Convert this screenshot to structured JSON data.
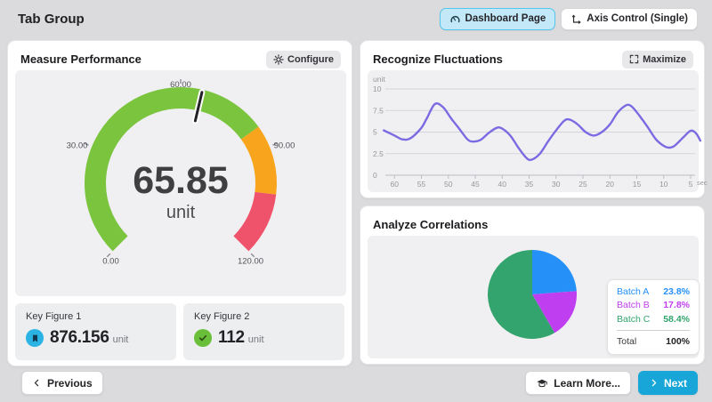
{
  "header": {
    "title": "Tab Group",
    "dashboard_button": {
      "label": "Dashboard Page"
    },
    "axis_button": {
      "label": "Axis Control (Single)"
    }
  },
  "measure_panel": {
    "title": "Measure Performance",
    "configure_label": "Configure"
  },
  "fluctuations_panel": {
    "title": "Recognize Fluctuations",
    "maximize_label": "Maximize"
  },
  "correlations_panel": {
    "title": "Analyze Correlations"
  },
  "key_figures": [
    {
      "label": "Key Figure 1",
      "value": "876.156",
      "unit": "unit",
      "icon": "bookmark-icon",
      "icon_bg": "#2bb3e3"
    },
    {
      "label": "Key Figure 2",
      "value": "112",
      "unit": "unit",
      "icon": "check-icon",
      "icon_bg": "#6abf3a"
    }
  ],
  "footer": {
    "previous_label": "Previous",
    "learn_more_label": "Learn More...",
    "next_label": "Next"
  },
  "colors": {
    "page_bg": "#dbdbdd",
    "accent_cyan": "#17a6d7",
    "active_chip_bg": "#c3e8f8",
    "active_chip_border": "#54c5ec",
    "tile_bg": "#f0f0f2"
  },
  "chart_data": [
    {
      "type": "gauge",
      "title": "Measure Performance",
      "value": "65.85",
      "numeric_value": 65.85,
      "unit": "unit",
      "min": 0,
      "max": 120,
      "start_angle": -135,
      "end_angle": 135,
      "ticks": [
        {
          "value": 0,
          "label": "0.00"
        },
        {
          "value": 30,
          "label": "30.00"
        },
        {
          "value": 60,
          "label": "60.00"
        },
        {
          "value": 90,
          "label": "90.00"
        },
        {
          "value": 120,
          "label": "120.00"
        }
      ],
      "segments": [
        {
          "from": 0,
          "to": 84,
          "color": "#7bc43e"
        },
        {
          "from": 84,
          "to": 103,
          "color": "#f8a41c"
        },
        {
          "from": 103,
          "to": 120,
          "color": "#ef536b"
        }
      ],
      "needle_color": "#232327"
    },
    {
      "type": "line",
      "title": "Recognize Fluctuations",
      "ylabel": "unit",
      "xlabel": "sec",
      "ylim": [
        0,
        10
      ],
      "yticks": [
        0,
        2.5,
        5,
        7.5,
        10
      ],
      "xticks": [
        60,
        55,
        50,
        45,
        40,
        35,
        30,
        25,
        20,
        15,
        10,
        5
      ],
      "x_axis_reversed": true,
      "grid": true,
      "line_color": "#7b6be2",
      "points": [
        [
          62,
          5.2
        ],
        [
          60,
          4.6
        ],
        [
          58.5,
          4.15
        ],
        [
          57,
          4.3
        ],
        [
          55,
          5.5
        ],
        [
          54,
          6.6
        ],
        [
          52.5,
          8.25
        ],
        [
          51,
          7.9
        ],
        [
          49.5,
          6.6
        ],
        [
          48,
          5.4
        ],
        [
          46.5,
          4.2
        ],
        [
          45.5,
          3.9
        ],
        [
          44,
          4.1
        ],
        [
          42.5,
          4.9
        ],
        [
          41,
          5.5
        ],
        [
          40,
          5.4
        ],
        [
          38.5,
          4.6
        ],
        [
          37,
          3.2
        ],
        [
          35.5,
          2.0
        ],
        [
          34.5,
          1.8
        ],
        [
          33,
          2.5
        ],
        [
          31.5,
          3.9
        ],
        [
          30,
          5.2
        ],
        [
          28.5,
          6.3
        ],
        [
          27.5,
          6.45
        ],
        [
          26,
          5.9
        ],
        [
          24.5,
          5.0
        ],
        [
          23,
          4.6
        ],
        [
          21.5,
          5.0
        ],
        [
          20,
          5.9
        ],
        [
          18.5,
          7.3
        ],
        [
          17,
          8.1
        ],
        [
          16,
          8.0
        ],
        [
          14.5,
          6.9
        ],
        [
          13,
          5.6
        ],
        [
          11.5,
          4.2
        ],
        [
          10,
          3.4
        ],
        [
          9,
          3.2
        ],
        [
          8,
          3.4
        ],
        [
          6.5,
          4.3
        ],
        [
          5,
          5.15
        ],
        [
          4,
          4.85
        ],
        [
          3.2,
          4.0
        ]
      ]
    },
    {
      "type": "pie",
      "title": "Analyze Correlations",
      "legend_position": "right",
      "slices": [
        {
          "name": "Batch A",
          "pct": "23.8%",
          "value": 23.8,
          "color": "#2590f7"
        },
        {
          "name": "Batch B",
          "pct": "17.8%",
          "value": 17.8,
          "color": "#bf3ef0"
        },
        {
          "name": "Batch C",
          "pct": "58.4%",
          "value": 58.4,
          "color": "#33a46d"
        }
      ],
      "total_label": "Total",
      "total_value": "100%"
    }
  ]
}
